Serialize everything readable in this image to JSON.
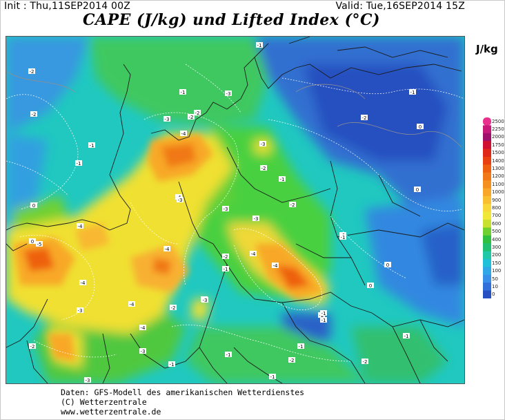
{
  "header": {
    "init": "Init : Thu,11SEP2014 00Z",
    "valid": "Valid: Tue,16SEP2014 15Z",
    "title": "CAPE (J/kg) und Lifted Index (°C)"
  },
  "legend": {
    "unit": "J/kg",
    "levels": [
      "2500",
      "2250",
      "2000",
      "1750",
      "1500",
      "1400",
      "1300",
      "1200",
      "1100",
      "1000",
      "900",
      "800",
      "700",
      "600",
      "500",
      "400",
      "300",
      "200",
      "150",
      "100",
      "50",
      "10",
      "0"
    ],
    "colors": [
      "#e8308c",
      "#c8187a",
      "#a0106a",
      "#d01030",
      "#e02818",
      "#e84010",
      "#ee6010",
      "#f07818",
      "#f49020",
      "#f8a828",
      "#f8c030",
      "#f8d838",
      "#f0e838",
      "#c8e030",
      "#70d030",
      "#30c040",
      "#20c070",
      "#20c8a8",
      "#20c0d8",
      "#30a8e8",
      "#3890e8",
      "#3070d8",
      "#2850c0"
    ]
  },
  "li_labels": [
    {
      "t": "-1"
    },
    {
      "t": "-2"
    },
    {
      "t": "-1"
    },
    {
      "t": "-3"
    },
    {
      "t": "-2"
    },
    {
      "t": "-1"
    },
    {
      "t": "-4"
    },
    {
      "t": "-3"
    },
    {
      "t": "-1"
    },
    {
      "t": "-1"
    },
    {
      "t": "-3"
    },
    {
      "t": "-2"
    },
    {
      "t": "-1"
    },
    {
      "t": "-2"
    },
    {
      "t": "-3"
    },
    {
      "t": "-3"
    },
    {
      "t": "-4"
    },
    {
      "t": "-3"
    },
    {
      "t": "-2"
    },
    {
      "t": "-5"
    },
    {
      "t": "-4"
    },
    {
      "t": "-4"
    },
    {
      "t": "-4"
    },
    {
      "t": "-4"
    },
    {
      "t": "-2"
    },
    {
      "t": "-1"
    },
    {
      "t": "-2"
    },
    {
      "t": "-3"
    },
    {
      "t": "-4"
    },
    {
      "t": "-3"
    },
    {
      "t": "-2"
    },
    {
      "t": "-1"
    },
    {
      "t": "-1"
    },
    {
      "t": "-2"
    },
    {
      "t": "-3"
    },
    {
      "t": "-1"
    },
    {
      "t": "-2"
    },
    {
      "t": "-1"
    },
    {
      "t": "-1"
    },
    {
      "t": "-1"
    },
    {
      "t": "-2"
    },
    {
      "t": "-1"
    },
    {
      "t": "-3"
    },
    {
      "t": "0"
    },
    {
      "t": "-2"
    },
    {
      "t": "0"
    },
    {
      "t": "-2"
    },
    {
      "t": "0"
    },
    {
      "t": "0"
    },
    {
      "t": "0"
    },
    {
      "t": "0"
    },
    {
      "t": "-1"
    },
    {
      "t": "-1"
    },
    {
      "t": "-4"
    },
    {
      "t": "-3"
    },
    {
      "t": "-4"
    }
  ],
  "footer": {
    "line1": "Daten: GFS-Modell des amerikanischen Wetterdienstes",
    "line2": "(C) Wetterzentrale",
    "line3": "www.wetterzentrale.de"
  }
}
